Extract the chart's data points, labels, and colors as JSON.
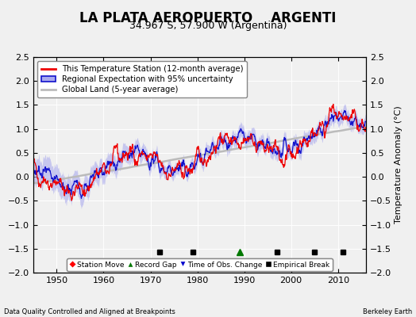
{
  "title": "LA PLATA AEROPUERTO    ARGENTI",
  "subtitle": "34.967 S, 57.900 W (Argentina)",
  "ylabel": "Temperature Anomaly (°C)",
  "bottom_left": "Data Quality Controlled and Aligned at Breakpoints",
  "bottom_right": "Berkeley Earth",
  "xlim": [
    1945,
    2016
  ],
  "ylim": [
    -2.0,
    2.5
  ],
  "yticks": [
    -2,
    -1.5,
    -1,
    -0.5,
    0,
    0.5,
    1,
    1.5,
    2,
    2.5
  ],
  "xticks": [
    1950,
    1960,
    1970,
    1980,
    1990,
    2000,
    2010
  ],
  "red_color": "#EE0000",
  "blue_color": "#1111CC",
  "blue_fill": "#AAAAEE",
  "gray_color": "#BBBBBB",
  "bg_color": "#F0F0F0",
  "empirical_breaks": [
    1972,
    1979,
    1997,
    2005,
    2011
  ],
  "record_gap": [
    1989
  ],
  "seed": 42
}
